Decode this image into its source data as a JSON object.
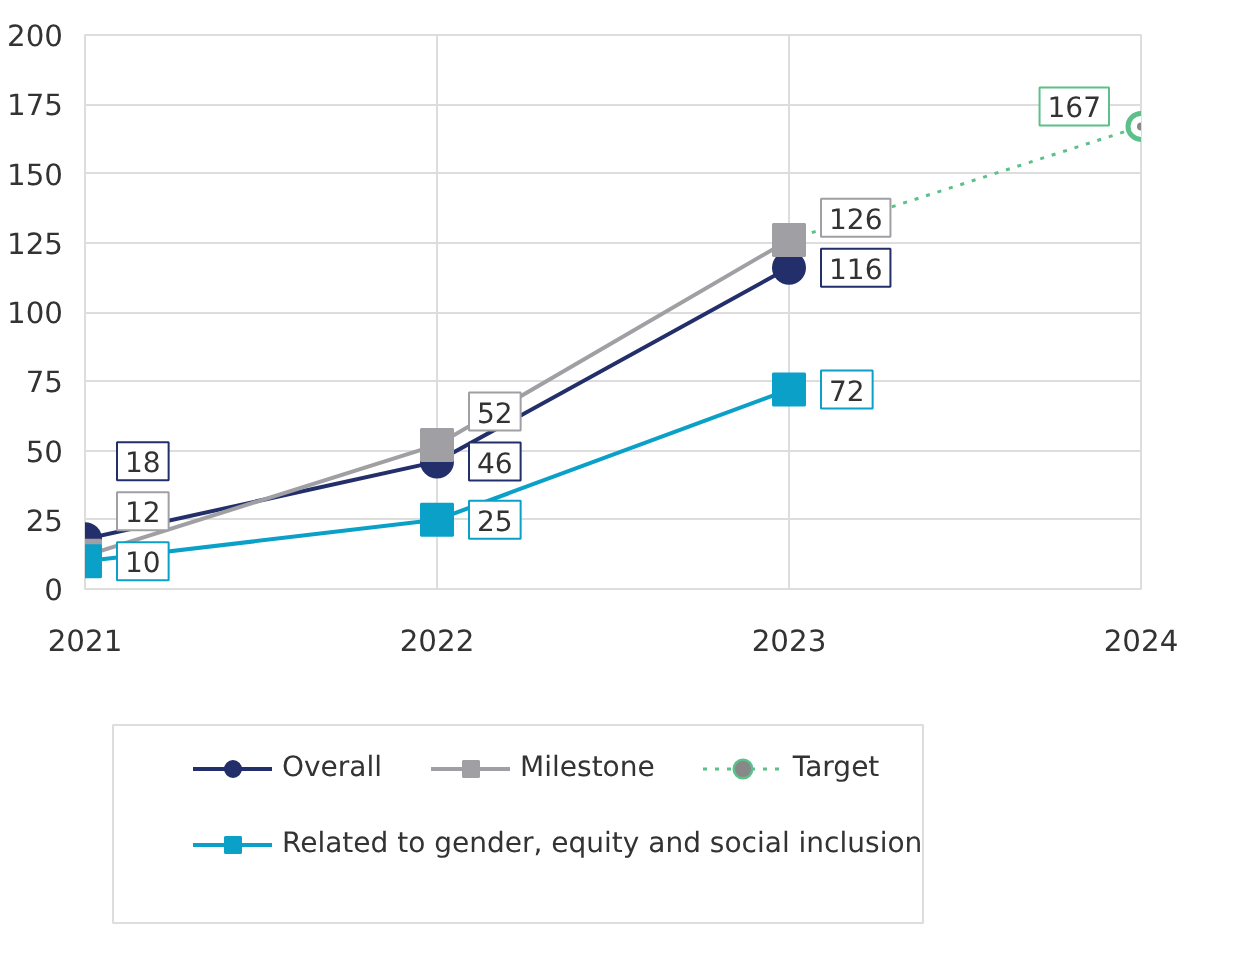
{
  "chart_data": {
    "type": "line",
    "x": [
      2021,
      2022,
      2023,
      2024
    ],
    "xlim": [
      2021,
      2024
    ],
    "xticks": [
      2021,
      2022,
      2023,
      2024
    ],
    "ylim": [
      0,
      200
    ],
    "yticks": [
      0,
      25,
      50,
      75,
      100,
      125,
      150,
      175,
      200
    ],
    "grid": true,
    "legend": "bottom",
    "line_style": "solid",
    "series": [
      {
        "name": "Overall",
        "color": "#232f6b",
        "marker": "circle",
        "values": [
          18,
          46,
          116,
          null
        ],
        "value_labels": [
          "18",
          "46",
          "116",
          null
        ]
      },
      {
        "name": "Milestone",
        "color": "#a0a0a4",
        "marker": "square",
        "values": [
          12,
          52,
          126,
          null
        ],
        "value_labels": [
          "12",
          "52",
          "126",
          null
        ]
      },
      {
        "name": "Target",
        "color": "#5cc08a",
        "marker": "circle",
        "line_style": "dotted",
        "values": [
          null,
          null,
          126,
          167
        ],
        "value_labels": [
          null,
          null,
          null,
          "167"
        ]
      },
      {
        "name": "Related to gender, equity and social inclusion",
        "color": "#0aa0c8",
        "marker": "square",
        "values": [
          10,
          25,
          72,
          null
        ],
        "value_labels": [
          "10",
          "25",
          "72",
          null
        ]
      }
    ]
  }
}
